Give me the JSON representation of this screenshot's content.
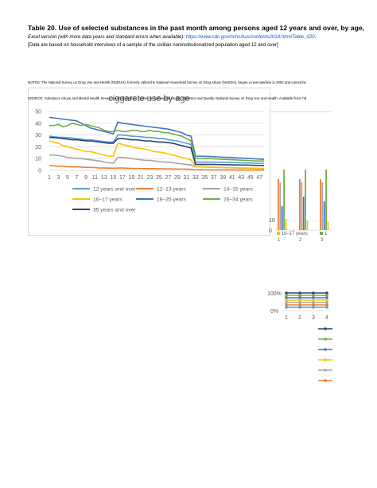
{
  "header": {
    "title": "Table 20. Use of selected substances in the past month among persons aged 12 years and over, by age,",
    "excel_prefix": "Excel version (with more data years and standard errors when available):",
    "excel_link": "https://www.cdc.gov/nchs/hus/contents2018.htm#Table_020",
    "excel_suffix": ".",
    "basis": "[Data are based on household interviews of a sample of the civilian noninstitutionalized population aged 12 and over]",
    "notes": "NOTES: The National Survey on Drug Use and Health (NSDUH), formerly called the National Household Survey on Drug Abuse (NHSDA), began a new baseline in 2002 and cannot be",
    "source": "SOURCE: Substance Abuse and Mental Health Services Administration, Center for Behavioral Health Statistics and Quality, National Survey on Drug Use and Health. Available from: htt"
  },
  "chart_data": {
    "type": "line",
    "title": "ciggarete use by age",
    "xlabel": "",
    "ylabel": "",
    "ylim": [
      0,
      50
    ],
    "yticks": [
      0,
      10,
      20,
      30,
      40,
      50
    ],
    "x": [
      1,
      2,
      3,
      4,
      5,
      6,
      7,
      8,
      9,
      10,
      11,
      12,
      13,
      14,
      15,
      16,
      17,
      18,
      19,
      20,
      21,
      22,
      23,
      24,
      25,
      26,
      27,
      28,
      29,
      30,
      31,
      32,
      33,
      34,
      35,
      36,
      37,
      38,
      39,
      40,
      41,
      42,
      43,
      44,
      45,
      46,
      47,
      48
    ],
    "xtick_labels": [
      "1",
      "3",
      "5",
      "7",
      "9",
      "11",
      "13",
      "15",
      "17",
      "19",
      "21",
      "23",
      "25",
      "27",
      "29",
      "31",
      "33",
      "35",
      "37",
      "39",
      "41",
      "43",
      "45",
      "47"
    ],
    "grid": "horizontal",
    "legend_position": "bottom",
    "colors": {
      "12 years and over": "#5b9bd5",
      "12–13 years": "#ed7d31",
      "14–15 years": "#a5a5a5",
      "16–17 years": "#ffc000",
      "18–25 years": "#4472c4",
      "26–34 years": "#70ad47",
      "35 years and over": "#264478"
    },
    "series": [
      {
        "name": "12 years and over",
        "values": [
          29,
          28.5,
          28,
          28,
          27.8,
          27.5,
          27,
          26.5,
          26,
          26,
          25.5,
          25,
          24.5,
          24,
          24,
          30,
          30,
          29.5,
          29,
          28.8,
          28.5,
          28,
          28,
          27.5,
          27,
          27,
          26,
          25.5,
          25,
          24,
          23,
          22,
          7,
          7,
          7,
          7,
          7,
          6.8,
          6.8,
          6.7,
          6.6,
          6.5,
          6.4,
          6.3,
          6.2,
          6,
          6,
          6
        ]
      },
      {
        "name": "12–13 years",
        "values": [
          4,
          3.8,
          3.5,
          3.5,
          3.2,
          3,
          3,
          2.8,
          2.6,
          2.5,
          2.3,
          2,
          2,
          1.9,
          1.8,
          2,
          2,
          1.8,
          1.7,
          1.6,
          1.6,
          1.5,
          1.5,
          1.4,
          1.4,
          1.3,
          1.2,
          1.2,
          1.1,
          1.1,
          1,
          0.9,
          0.5,
          0.5,
          0.5,
          0.5,
          0.4,
          0.4,
          0.4,
          0.4,
          0.4,
          0.3,
          0.3,
          0.3,
          0.3,
          0.3,
          0.3,
          0.3
        ]
      },
      {
        "name": "14–15 years",
        "values": [
          13,
          13,
          12.5,
          12,
          11,
          10.5,
          10,
          10,
          9.5,
          9,
          8.5,
          8,
          7,
          6.5,
          6,
          11,
          11,
          10.5,
          10,
          9.5,
          9,
          8.5,
          8.5,
          8,
          7.5,
          7,
          7,
          6.5,
          6,
          5.5,
          5,
          4.5,
          3,
          3,
          2.8,
          2.7,
          2.6,
          2.5,
          2.4,
          2.3,
          2.2,
          2,
          2,
          1.9,
          1.8,
          1.7,
          1.6,
          1.5
        ]
      },
      {
        "name": "16–17 years",
        "values": [
          25,
          24,
          23,
          21,
          20,
          19,
          18,
          17,
          16,
          16,
          15,
          14,
          13,
          12,
          12,
          23,
          22,
          21,
          20,
          19,
          18.5,
          18,
          17,
          16,
          15.5,
          15,
          14,
          13,
          12,
          11,
          10,
          9,
          3,
          3,
          3,
          2.8,
          2.7,
          2.6,
          2.5,
          2.4,
          2.3,
          2.2,
          2.1,
          2,
          1.9,
          1.8,
          1.7,
          1.6
        ]
      },
      {
        "name": "18–25 years",
        "values": [
          45,
          44.5,
          44,
          43.5,
          43,
          42.5,
          42,
          40,
          38,
          36,
          35,
          34,
          33,
          32,
          31,
          41,
          40,
          39.5,
          39,
          38.5,
          38,
          37.5,
          37,
          36.5,
          36,
          35.5,
          35,
          34,
          33,
          32,
          30,
          29,
          12,
          12,
          12,
          11.8,
          11.6,
          11.4,
          11.2,
          11,
          10.8,
          10.6,
          10.4,
          10.2,
          10,
          9.8,
          9.6,
          9.4
        ]
      },
      {
        "name": "26–34 years",
        "values": [
          38,
          38,
          39,
          37,
          38,
          40,
          39,
          38,
          39,
          38,
          37,
          36,
          34,
          33,
          33,
          34,
          33,
          33,
          34,
          34,
          33,
          33,
          34,
          33,
          33,
          32,
          32,
          31,
          30,
          29,
          27,
          25,
          10,
          10,
          10,
          10,
          9.8,
          9.6,
          9.4,
          9.2,
          9,
          8.8,
          8.6,
          8.4,
          8.2,
          8,
          8,
          8
        ]
      },
      {
        "name": "35 years and over",
        "values": [
          28,
          27.8,
          27.5,
          27,
          26.5,
          26,
          26,
          25.5,
          25,
          25,
          24.5,
          24,
          23.5,
          23,
          23,
          27,
          27,
          26.5,
          26,
          26,
          25.5,
          25,
          25,
          24.5,
          24,
          24,
          23.5,
          23,
          22,
          21,
          20,
          19,
          5,
          5,
          5,
          5,
          5,
          4.9,
          4.8,
          4.8,
          4.7,
          4.6,
          4.5,
          4.5,
          4.4,
          4.3,
          4.2,
          4.2
        ]
      }
    ]
  },
  "right_charts": {
    "bar_ticks": [
      "10",
      "0"
    ],
    "bar_legend": [
      "16–17 years",
      "1"
    ],
    "bar_x_labels": [
      "1",
      "2",
      "3"
    ],
    "dots_y_ticks": [
      "100%",
      "0%"
    ],
    "dots_x_labels": [
      "1",
      "2",
      "3",
      "4"
    ]
  }
}
